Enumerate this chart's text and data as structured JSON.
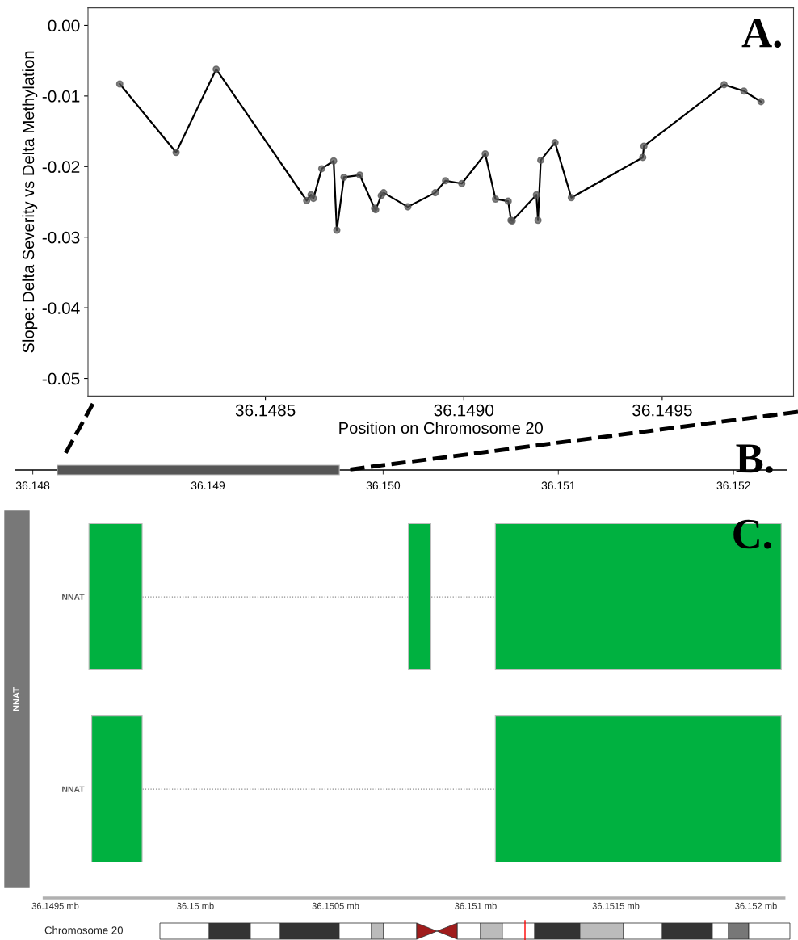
{
  "chart_data": [
    {
      "type": "line",
      "xlabel": "Position on Chromosome 20",
      "ylabel": "Slope: Delta Severity vs Delta Methylation",
      "marker": "circle",
      "legend": false,
      "grid": false,
      "x": [
        36.148133,
        36.148275,
        36.148376,
        36.148604,
        36.148615,
        36.148621,
        36.148642,
        36.148672,
        36.14868,
        36.148698,
        36.148738,
        36.148775,
        36.148778,
        36.148792,
        36.148798,
        36.148859,
        36.148928,
        36.148954,
        36.148995,
        36.149054,
        36.14908,
        36.149112,
        36.149119,
        36.149122,
        36.149183,
        36.149187,
        36.149194,
        36.14923,
        36.149271,
        36.149451,
        36.149454,
        36.149656,
        36.149706,
        36.149749
      ],
      "series": [
        {
          "color": "#000000",
          "values": [
            -0.0083,
            -0.018,
            -0.0062,
            -0.0248,
            -0.024,
            -0.0245,
            -0.0203,
            -0.0192,
            -0.029,
            -0.0215,
            -0.0212,
            -0.0259,
            -0.0261,
            -0.0241,
            -0.0237,
            -0.0257,
            -0.0237,
            -0.022,
            -0.0224,
            -0.0182,
            -0.0246,
            -0.0249,
            -0.0276,
            -0.0277,
            -0.024,
            -0.0276,
            -0.0191,
            -0.0166,
            -0.0244,
            -0.0187,
            -0.0171,
            -0.0084,
            -0.0093,
            -0.0108
          ]
        }
      ],
      "xlim": [
        36.148053,
        36.149831
      ],
      "xticks": [
        36.1485,
        {
          "value": 36.149,
          "label": "36.1490"
        },
        36.1495
      ],
      "ylim": [
        -0.0525,
        0.0025
      ],
      "yticks": [
        {
          "value": 0,
          "label": "0.00"
        },
        {
          "value": -0.01,
          "label": "-0.01"
        },
        {
          "value": -0.02,
          "label": "-0.02"
        },
        {
          "value": -0.03,
          "label": "-0.03"
        },
        {
          "value": -0.04,
          "label": "-0.04"
        },
        {
          "value": -0.05,
          "label": "-0.05"
        }
      ],
      "annotations": [
        "A."
      ]
    },
    {
      "type": "bar",
      "orientation": "horizontal",
      "categories": [
        null
      ],
      "base": [
        36.14814
      ],
      "values": [
        0.00161
      ],
      "color": "#555555",
      "legend": false,
      "xlim": [
        36.1479,
        36.1523
      ],
      "xticks": [
        36.148,
        36.149,
        {
          "value": 36.15,
          "label": "36.150"
        },
        36.151,
        36.152
      ],
      "tick_labels": "x",
      "annotations": [
        "B."
      ]
    },
    {
      "type": "bar",
      "orientation": "horizontal",
      "categories": [
        "NNAT",
        "NNAT"
      ],
      "ylabel": "NNAT",
      "legend": false,
      "line_style": "dotted",
      "series": [
        {
          "color": "#00b140",
          "base": [
            36.14962,
            36.14963
          ],
          "values": [
            0.00019,
            0.00018
          ]
        },
        {
          "color": "#00b140",
          "base": [
            36.15076,
            null
          ],
          "values": [
            8e-05,
            null
          ]
        },
        {
          "color": "#00b140",
          "base": [
            36.15107,
            36.15107
          ],
          "values": [
            0.00102,
            0.00102
          ]
        }
      ],
      "xlim": [
        36.14946,
        36.1521
      ],
      "xticks": [
        {
          "value": 36.1495,
          "label": "36.1495 mb"
        },
        {
          "value": 36.15,
          "label": "36.15 mb"
        },
        {
          "value": 36.1505,
          "label": "36.1505 mb"
        },
        {
          "value": 36.151,
          "label": "36.151 mb"
        },
        {
          "value": 36.1515,
          "label": "36.1515 mb"
        },
        {
          "value": 36.152,
          "label": "36.152 mb"
        }
      ],
      "annotations": [
        "C.",
        "Chromosome 20"
      ]
    }
  ]
}
